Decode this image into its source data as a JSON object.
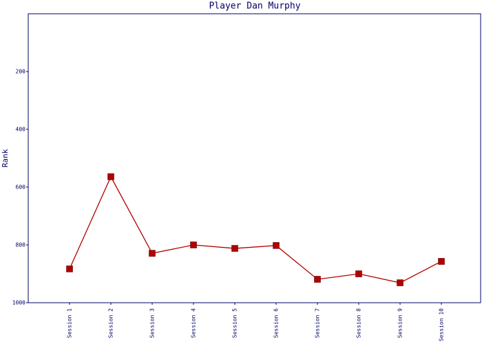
{
  "chart_data": {
    "type": "line",
    "title": "Player Dan Murphy",
    "y_label": "Rank",
    "categories": [
      "Session 1",
      "Session 2",
      "Session 3",
      "Session 4",
      "Session 5",
      "Session 6",
      "Session 7",
      "Session 8",
      "Session 9",
      "Session 10"
    ],
    "series": [
      {
        "name": "Rank",
        "color": "#b00000",
        "values": [
          883,
          564,
          829,
          800,
          812,
          802,
          919,
          900,
          931,
          857
        ]
      }
    ],
    "ylim": [
      1000,
      0
    ],
    "yticks": [
      200,
      400,
      600,
      800,
      1000
    ],
    "grid": false
  }
}
